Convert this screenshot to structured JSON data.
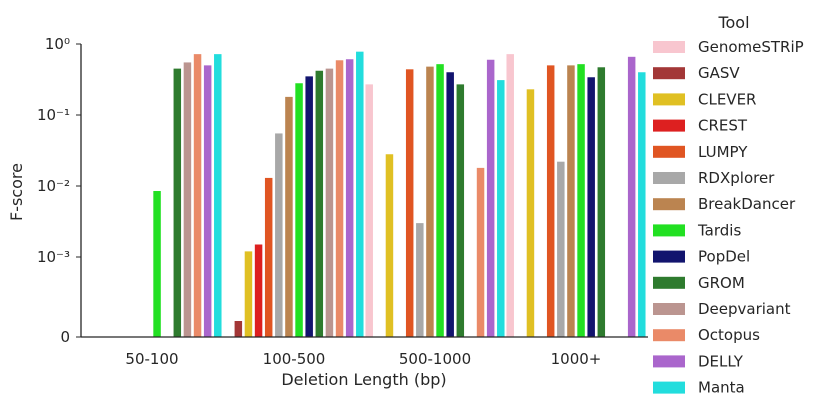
{
  "chart_data": {
    "type": "bar",
    "xlabel": "Deletion Length (bp)",
    "ylabel": "F-score",
    "yscale": "symlog",
    "ytick_labels": [
      "0",
      "10⁻³",
      "10⁻²",
      "10⁻¹",
      "10⁰"
    ],
    "ytick_values": [
      0,
      0.001,
      0.01,
      0.1,
      1
    ],
    "categories": [
      "50-100",
      "100-500",
      "500-1000",
      "1000+"
    ],
    "legend_title": "Tool",
    "legend_position": "right",
    "grid": false,
    "series": [
      {
        "name": "GenomeSTRiP",
        "color": "#f8c6cf",
        "values": [
          0,
          0,
          0.27,
          0.72
        ]
      },
      {
        "name": "GASV",
        "color": "#a33737",
        "values": [
          0,
          0.0002,
          0,
          0
        ]
      },
      {
        "name": "CLEVER",
        "color": "#e0c023",
        "values": [
          0,
          0.0012,
          0.028,
          0.23
        ]
      },
      {
        "name": "CREST",
        "color": "#dd2020",
        "values": [
          0,
          0.0015,
          0,
          0
        ]
      },
      {
        "name": "LUMPY",
        "color": "#e05522",
        "values": [
          0,
          0.013,
          0.44,
          0.5
        ]
      },
      {
        "name": "RDXplorer",
        "color": "#a8a8a8",
        "values": [
          0,
          0.055,
          0.003,
          0.022
        ]
      },
      {
        "name": "BreakDancer",
        "color": "#bb8450",
        "values": [
          0,
          0.18,
          0.48,
          0.5
        ]
      },
      {
        "name": "Tardis",
        "color": "#22e022",
        "values": [
          0.0085,
          0.28,
          0.52,
          0.52
        ]
      },
      {
        "name": "PopDel",
        "color": "#12146e",
        "values": [
          0,
          0.35,
          0.4,
          0.34
        ]
      },
      {
        "name": "GROM",
        "color": "#2e7b2e",
        "values": [
          0.45,
          0.42,
          0.27,
          0.47
        ]
      },
      {
        "name": "Deepvariant",
        "color": "#bb9590",
        "values": [
          0.55,
          0.45,
          0,
          0
        ]
      },
      {
        "name": "Octopus",
        "color": "#ea8a68",
        "values": [
          0.72,
          0.59,
          0.018,
          0
        ]
      },
      {
        "name": "DELLY",
        "color": "#aa66cc",
        "values": [
          0.5,
          0.61,
          0.6,
          0.66
        ]
      },
      {
        "name": "Manta",
        "color": "#22dddd",
        "values": [
          0.72,
          0.78,
          0.31,
          0.4
        ]
      }
    ]
  }
}
